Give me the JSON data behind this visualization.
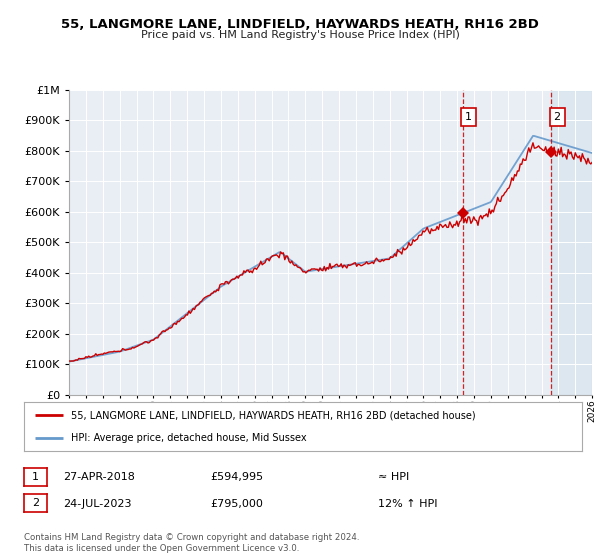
{
  "title": "55, LANGMORE LANE, LINDFIELD, HAYWARDS HEATH, RH16 2BD",
  "subtitle": "Price paid vs. HM Land Registry's House Price Index (HPI)",
  "legend_line1": "55, LANGMORE LANE, LINDFIELD, HAYWARDS HEATH, RH16 2BD (detached house)",
  "legend_line2": "HPI: Average price, detached house, Mid Sussex",
  "sale1_date": "27-APR-2018",
  "sale1_price": "£594,995",
  "sale1_vs": "≈ HPI",
  "sale2_date": "24-JUL-2023",
  "sale2_price": "£795,000",
  "sale2_vs": "12% ↑ HPI",
  "footer": "Contains HM Land Registry data © Crown copyright and database right 2024.\nThis data is licensed under the Open Government Licence v3.0.",
  "line_color": "#cc0000",
  "hpi_color": "#6699cc",
  "vline_color": "#cc0000",
  "background_plot": "#e8eef4",
  "background_fig": "#ffffff",
  "shade_color": "#dde8f0",
  "ylim_min": 0,
  "ylim_max": 1000000,
  "sale1_year": 2018.32,
  "sale1_value": 594995,
  "sale2_year": 2023.56,
  "sale2_value": 795000,
  "xmin": 1995,
  "xmax": 2026
}
